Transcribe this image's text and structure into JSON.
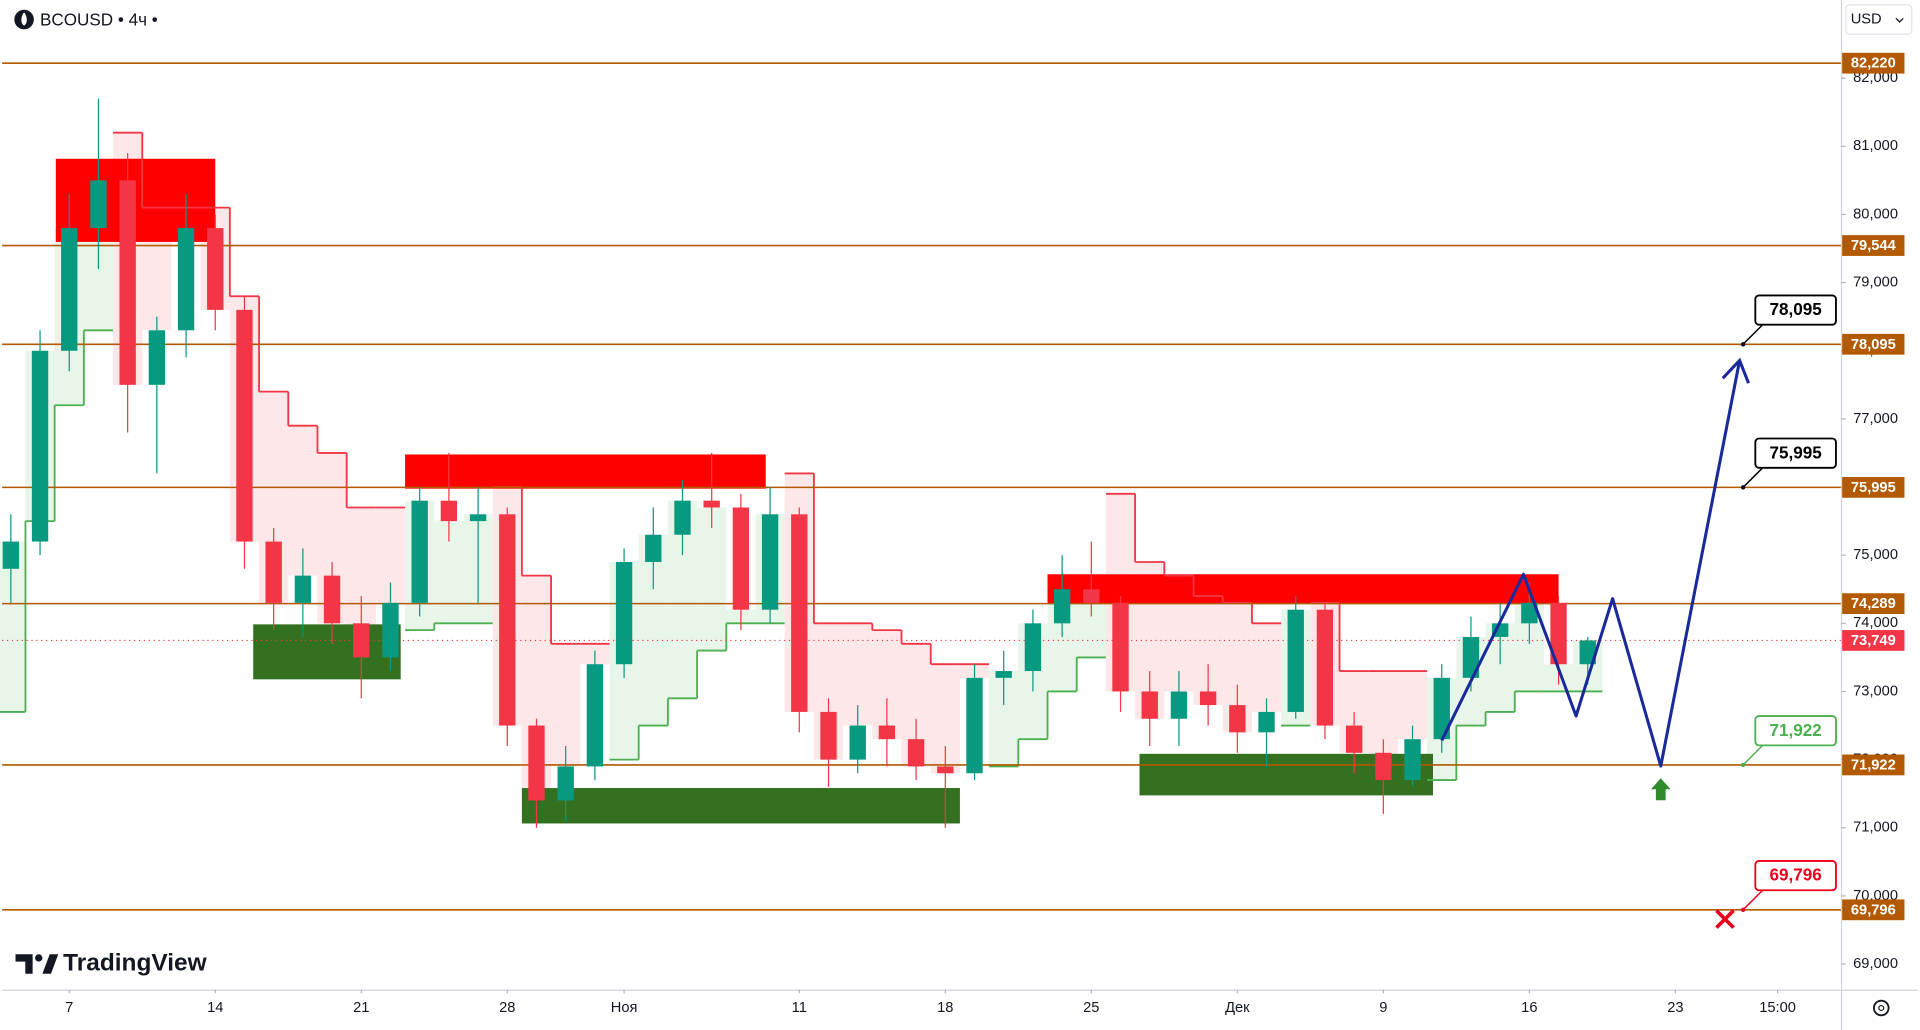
{
  "header": {
    "symbol": "BCOUSD • 4ч •",
    "currency": "USD",
    "brand": "TradingView"
  },
  "chart_data": {
    "type": "candlestick",
    "xlim": [
      -2.3,
      60.67
    ],
    "ylim": [
      68624,
      83147
    ],
    "xticks": [
      {
        "value": 0,
        "label": "7"
      },
      {
        "value": 5,
        "label": "14"
      },
      {
        "value": 10,
        "label": "21"
      },
      {
        "value": 15,
        "label": "28"
      },
      {
        "value": 19,
        "label": "Ноя"
      },
      {
        "value": 25,
        "label": "11"
      },
      {
        "value": 30,
        "label": "18"
      },
      {
        "value": 35,
        "label": "25"
      },
      {
        "value": 40,
        "label": "Дек"
      },
      {
        "value": 45,
        "label": "9"
      },
      {
        "value": 50,
        "label": "16"
      },
      {
        "value": 55,
        "label": "23"
      },
      {
        "value": 58.5,
        "label": "15:00"
      }
    ],
    "yticks": [
      {
        "value": 69000,
        "label": "69,000"
      },
      {
        "value": 70000,
        "label": "70,000"
      },
      {
        "value": 71000,
        "label": "71,000"
      },
      {
        "value": 72000,
        "label": "72,000"
      },
      {
        "value": 73000,
        "label": "73,000"
      },
      {
        "value": 74000,
        "label": "74,000"
      },
      {
        "value": 75000,
        "label": "75,000"
      },
      {
        "value": 76000,
        "label": "76,000"
      },
      {
        "value": 77000,
        "label": "77,000"
      },
      {
        "value": 78000,
        "label": "78,000"
      },
      {
        "value": 79000,
        "label": "79,000"
      },
      {
        "value": 80000,
        "label": "80,000"
      },
      {
        "value": 81000,
        "label": "81,000"
      },
      {
        "value": 82000,
        "label": "82,000"
      }
    ],
    "up_color": "#089981",
    "down_color": "#f23645",
    "x": [
      -2,
      -1,
      0,
      1,
      2,
      3,
      4,
      5,
      6,
      7,
      8,
      9,
      10,
      11,
      12,
      13,
      14,
      15,
      16,
      17,
      18,
      19,
      20,
      21,
      22,
      23,
      24,
      25,
      26,
      27,
      28,
      29,
      30,
      31,
      32,
      33,
      34,
      35,
      36,
      37,
      38,
      39,
      40,
      41,
      42,
      43,
      44,
      45,
      46,
      47,
      48,
      49,
      50,
      51,
      52
    ],
    "open": [
      74800,
      75200,
      78000,
      79800,
      80500,
      77500,
      78300,
      79800,
      78600,
      75200,
      74300,
      74700,
      74000,
      73500,
      74300,
      75800,
      75500,
      75600,
      72500,
      71400,
      71900,
      73400,
      74900,
      75300,
      75800,
      75700,
      74200,
      75600,
      72700,
      72000,
      72500,
      72300,
      71900,
      71800,
      73200,
      73300,
      74000,
      74500,
      74300,
      73000,
      72600,
      73000,
      72800,
      72400,
      72700,
      74200,
      72500,
      72100,
      71700,
      72300,
      73200,
      73800,
      74000,
      74300,
      73400
    ],
    "high": [
      75600,
      78300,
      80300,
      81700,
      80900,
      78500,
      80300,
      80000,
      78800,
      75400,
      75100,
      74900,
      74400,
      74600,
      76000,
      76500,
      76000,
      75700,
      72600,
      72200,
      73600,
      75100,
      75700,
      76100,
      76500,
      75900,
      76000,
      75700,
      72900,
      72800,
      72900,
      72600,
      72200,
      73400,
      73600,
      74200,
      75000,
      75200,
      74400,
      73300,
      73300,
      73400,
      73100,
      72900,
      74400,
      74300,
      72700,
      72300,
      72500,
      73400,
      74100,
      74300,
      74600,
      74400,
      73800
    ],
    "low": [
      74300,
      75000,
      77700,
      79200,
      76800,
      76200,
      77900,
      78300,
      74800,
      73900,
      73800,
      73700,
      72900,
      73300,
      74100,
      75200,
      74300,
      72200,
      71000,
      71100,
      71700,
      73200,
      74500,
      75000,
      75400,
      73900,
      74000,
      72400,
      71600,
      71800,
      71900,
      71700,
      71000,
      71700,
      72800,
      73000,
      73800,
      74100,
      72700,
      72200,
      72200,
      72500,
      72100,
      71900,
      72600,
      72300,
      71800,
      71200,
      71600,
      72100,
      73000,
      73400,
      73700,
      73100,
      73100
    ],
    "close": [
      75200,
      78000,
      79800,
      80500,
      77500,
      78300,
      79800,
      78600,
      75200,
      74300,
      74700,
      74000,
      73500,
      74300,
      75800,
      75500,
      75600,
      72500,
      71400,
      71900,
      73400,
      74900,
      75300,
      75800,
      75700,
      74200,
      75600,
      72700,
      72000,
      72500,
      72300,
      71900,
      71800,
      73200,
      73300,
      74000,
      74500,
      74300,
      73000,
      72600,
      73000,
      72800,
      72400,
      72700,
      74200,
      72500,
      72100,
      71700,
      72300,
      73200,
      73800,
      74000,
      74300,
      73400,
      73749
    ],
    "trend_up": {
      "color": "#4caf50",
      "fill": "#e8f5e9",
      "values": [
        72700,
        75500,
        77200,
        78300,
        null,
        null,
        null,
        null,
        null,
        null,
        null,
        null,
        null,
        null,
        73900,
        74000,
        74000,
        null,
        null,
        null,
        null,
        72000,
        72500,
        72900,
        73600,
        74000,
        74000,
        null,
        null,
        null,
        null,
        null,
        null,
        null,
        71900,
        72300,
        73000,
        73500,
        null,
        null,
        null,
        null,
        null,
        null,
        72500,
        null,
        null,
        null,
        null,
        71700,
        72500,
        72700,
        73000,
        73000,
        73000
      ]
    },
    "trend_down": {
      "color": "#f23645",
      "fill": "#fde7e9",
      "values": [
        null,
        null,
        null,
        null,
        81200,
        80100,
        80100,
        80100,
        78800,
        77400,
        76900,
        76500,
        75700,
        75700,
        null,
        null,
        null,
        76000,
        74700,
        73700,
        73700,
        null,
        null,
        null,
        null,
        null,
        null,
        76200,
        74000,
        74000,
        73900,
        73700,
        73400,
        73400,
        null,
        null,
        null,
        null,
        75900,
        74900,
        74700,
        74400,
        74300,
        74000,
        null,
        74300,
        73300,
        73300,
        73300,
        null,
        null,
        null,
        null,
        null,
        null
      ]
    },
    "zones": [
      {
        "x0": -0.46,
        "x1": 5.0,
        "top": 80817,
        "bottom": 79597,
        "color": "#ff0000"
      },
      {
        "x0": 11.5,
        "x1": 23.85,
        "top": 76478,
        "bottom": 75976,
        "color": "#ff0000"
      },
      {
        "x0": 33.5,
        "x1": 51.0,
        "top": 74720,
        "bottom": 74290,
        "color": "#ff0000"
      },
      {
        "x0": 6.3,
        "x1": 11.35,
        "top": 73985,
        "bottom": 73178,
        "color": "#33701f"
      },
      {
        "x0": 15.5,
        "x1": 30.5,
        "top": 71583,
        "bottom": 71063,
        "color": "#33701f"
      },
      {
        "x0": 36.65,
        "x1": 46.7,
        "top": 72085,
        "bottom": 71475,
        "color": "#33701f"
      }
    ],
    "levels": {
      "color": "#b35900",
      "values": [
        82220,
        79544,
        78095,
        75995,
        74289,
        71922,
        69796
      ],
      "value_labels": [
        "82,220",
        "79,544",
        "78,095",
        "75,995",
        "74,289",
        "71,922",
        "69,796"
      ]
    },
    "last_price": {
      "value": 73749,
      "label": "73,749",
      "color": "#f23645"
    },
    "callouts": [
      {
        "level": 2,
        "x": 57.32,
        "color": "#000000"
      },
      {
        "level": 3,
        "x": 57.32,
        "color": "#000000"
      },
      {
        "level": 5,
        "x": 57.32,
        "color": "#4caf50"
      },
      {
        "level": 6,
        "x": 57.32,
        "color": "#e8001c"
      }
    ],
    "projection": {
      "color": "#1a2a9a",
      "x": [
        47,
        49.8,
        51.6,
        52.85,
        54.5,
        57.2
      ],
      "values": [
        72282,
        74720,
        72640,
        74362,
        71905,
        77858
      ]
    },
    "markers": [
      {
        "shape": "arrow-up",
        "x": 54.5,
        "value": 71583,
        "color": "#2e8b2e"
      },
      {
        "shape": "cross",
        "x": 56.7,
        "value": 69660,
        "color": "#e8001c"
      }
    ]
  }
}
